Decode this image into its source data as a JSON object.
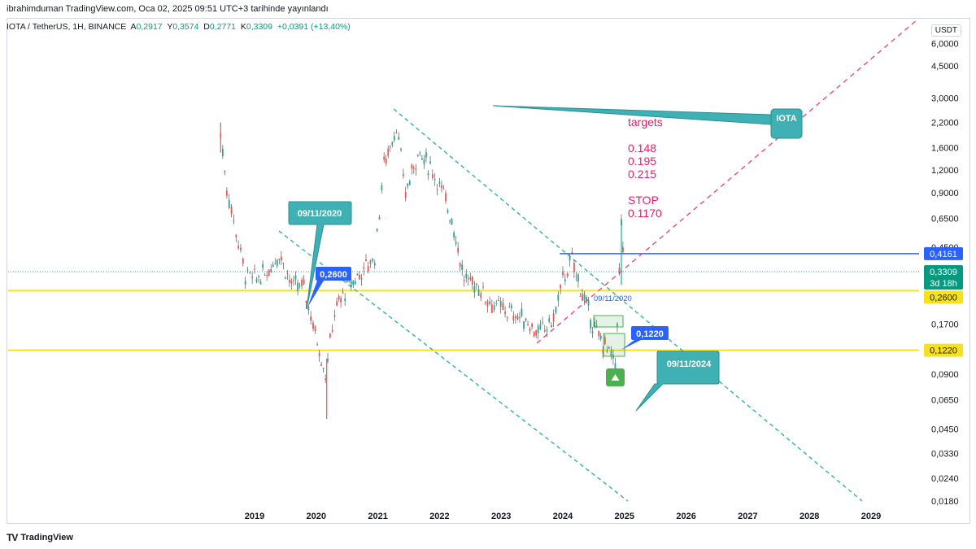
{
  "header": {
    "published": "ibrahimduman TradingView.com, Oca 02, 2025 09:51 UTC+3 tarihinde yayınlandı",
    "symbol": "IOTA / TetherUS, 1H, BINANCE",
    "open_label": "A",
    "open": "0,2917",
    "high_label": "Y",
    "high": "0,3574",
    "low_label": "D",
    "low": "0,2771",
    "close_label": "K",
    "close": "0,3309",
    "change": "+0,0391 (+13,40%)"
  },
  "price_scale_currency": "USDT",
  "footer": {
    "brand": "TradingView",
    "logo": "TV"
  },
  "colors": {
    "up": "#26a69a",
    "down": "#ef5350",
    "candle": "#787b86",
    "teal_line": "#41b3b0",
    "pink_line": "#e0568b",
    "yellow": "#f7e11b",
    "blue": "#2962ff",
    "callout": "#3fb1b4",
    "green": "#4caf50"
  },
  "annotations": {
    "callout_2020": "09/11/2020",
    "callout_2024": "09/11/2024",
    "iota_box": "IOTA",
    "badge_2600": "0,2600",
    "badge_1220": "0,1220",
    "small_text": "09/11/2020",
    "targets": [
      "targets",
      "",
      "0.148",
      "0.195",
      "0.215",
      "",
      "STOP",
      "0.1170"
    ]
  },
  "price_badges": {
    "level_blue": "0,4161",
    "last_price": "0,3309",
    "countdown": "3d 18h",
    "level_yellow_top": "0,2600",
    "level_yellow_bottom": "0,1220"
  },
  "chart_data": {
    "type": "candlestick",
    "scale": "log",
    "x_ticks": [
      "2019",
      "2020",
      "2021",
      "2022",
      "2023",
      "2024",
      "2025",
      "2026",
      "2027",
      "2028",
      "2029"
    ],
    "y_ticks": [
      "6,0000",
      "4,5000",
      "3,0000",
      "2,2000",
      "1,6000",
      "1,2000",
      "0,9000",
      "0,6500",
      "0,4500",
      "0,1700",
      "0,0900",
      "0,0650",
      "0,0450",
      "0,0330",
      "0,0240",
      "0,0180"
    ],
    "ylim": [
      0.0165,
      8
    ],
    "horizontal_levels": [
      0.4161,
      0.26,
      0.122
    ],
    "last_price": 0.3309,
    "series_closes": [
      {
        "x": 2018.45,
        "y": 1.9
      },
      {
        "x": 2018.55,
        "y": 0.95
      },
      {
        "x": 2018.7,
        "y": 0.55
      },
      {
        "x": 2018.85,
        "y": 0.32
      },
      {
        "x": 2019.0,
        "y": 0.3
      },
      {
        "x": 2019.2,
        "y": 0.33
      },
      {
        "x": 2019.4,
        "y": 0.42
      },
      {
        "x": 2019.6,
        "y": 0.28
      },
      {
        "x": 2019.8,
        "y": 0.27
      },
      {
        "x": 2019.95,
        "y": 0.17
      },
      {
        "x": 2020.15,
        "y": 0.09
      },
      {
        "x": 2020.3,
        "y": 0.2
      },
      {
        "x": 2020.5,
        "y": 0.27
      },
      {
        "x": 2020.7,
        "y": 0.32
      },
      {
        "x": 2020.95,
        "y": 0.4
      },
      {
        "x": 2021.1,
        "y": 1.3
      },
      {
        "x": 2021.3,
        "y": 2.1
      },
      {
        "x": 2021.45,
        "y": 0.9
      },
      {
        "x": 2021.65,
        "y": 1.5
      },
      {
        "x": 2021.85,
        "y": 1.25
      },
      {
        "x": 2022.0,
        "y": 1.0
      },
      {
        "x": 2022.2,
        "y": 0.65
      },
      {
        "x": 2022.4,
        "y": 0.3
      },
      {
        "x": 2022.6,
        "y": 0.28
      },
      {
        "x": 2022.85,
        "y": 0.22
      },
      {
        "x": 2023.1,
        "y": 0.2
      },
      {
        "x": 2023.4,
        "y": 0.18
      },
      {
        "x": 2023.6,
        "y": 0.15
      },
      {
        "x": 2023.85,
        "y": 0.18
      },
      {
        "x": 2024.0,
        "y": 0.3
      },
      {
        "x": 2024.15,
        "y": 0.38
      },
      {
        "x": 2024.35,
        "y": 0.23
      },
      {
        "x": 2024.55,
        "y": 0.15
      },
      {
        "x": 2024.75,
        "y": 0.12
      },
      {
        "x": 2024.85,
        "y": 0.1
      },
      {
        "x": 2024.95,
        "y": 0.6
      },
      {
        "x": 2025.0,
        "y": 0.3309
      }
    ]
  }
}
